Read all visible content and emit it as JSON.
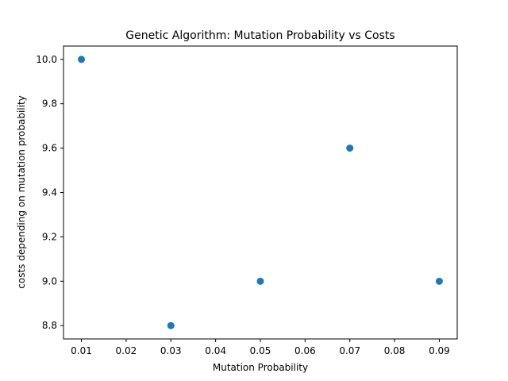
{
  "chart_data": {
    "type": "scatter",
    "title": "Genetic Algorithm: Mutation Probability vs Costs",
    "xlabel": "Mutation Probability",
    "ylabel": "costs depending on mutation probability",
    "xlim": [
      0.006,
      0.094
    ],
    "ylim": [
      8.74,
      10.06
    ],
    "x_ticks": [
      0.01,
      0.02,
      0.03,
      0.04,
      0.05,
      0.06,
      0.07,
      0.08,
      0.09
    ],
    "x_tick_labels": [
      "0.01",
      "0.02",
      "0.03",
      "0.04",
      "0.05",
      "0.06",
      "0.07",
      "0.08",
      "0.09"
    ],
    "y_ticks": [
      8.8,
      9.0,
      9.2,
      9.4,
      9.6,
      9.8,
      10.0
    ],
    "y_tick_labels": [
      "8.8",
      "9.0",
      "9.2",
      "9.4",
      "9.6",
      "9.8",
      "10.0"
    ],
    "grid": false,
    "legend": "none",
    "marker_color": "#1f77b4",
    "series": [
      {
        "x": [
          0.01,
          0.03,
          0.05,
          0.07,
          0.09
        ],
        "y": [
          10.0,
          8.8,
          9.0,
          9.6,
          9.0
        ]
      }
    ]
  }
}
